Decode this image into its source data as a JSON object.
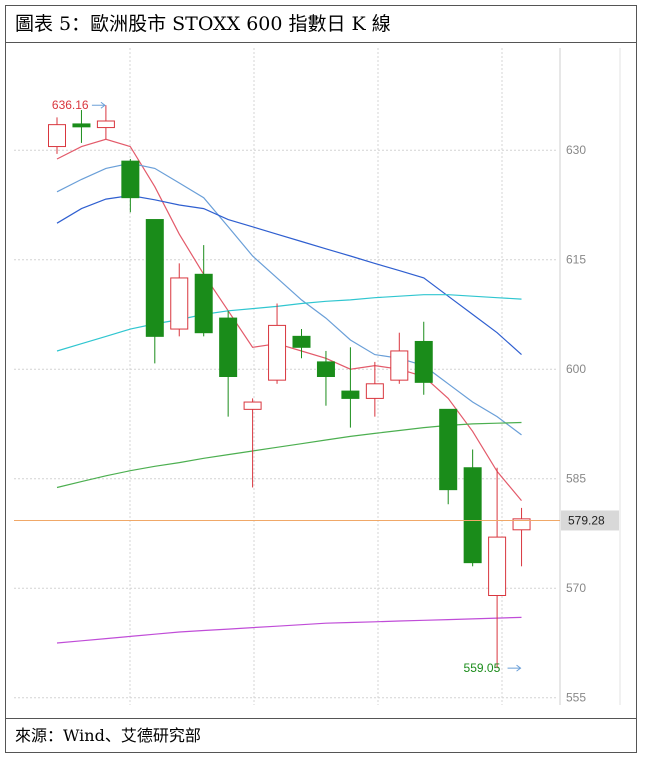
{
  "title": "圖表 5：歐洲股市 STOXX 600 指數日 K 線",
  "source": "來源：Wind、艾德研究部",
  "chart_data": {
    "type": "candlestick",
    "title": "圖表 5：歐洲股市 STOXX 600 指數日 K 線",
    "ylim": [
      554,
      644
    ],
    "yticks": [
      555,
      570,
      585,
      600,
      615,
      630
    ],
    "grid": true,
    "colors": {
      "up": "#d9363e",
      "down": "#1a8c1a",
      "price_line": "#f0a868",
      "price_label_bg": "#d8d8d8"
    },
    "current_price": {
      "value": 579.28,
      "label": "579.28"
    },
    "annotations": [
      {
        "label": "636.16",
        "value": 636.16,
        "candle_index": 2,
        "color": "#d9363e"
      },
      {
        "label": "559.05",
        "value": 559.05,
        "candle_index": 19,
        "color": "#1a8c1a"
      }
    ],
    "candles": [
      {
        "open": 630.5,
        "close": 633.5,
        "high": 634.5,
        "low": 629.5
      },
      {
        "open": 633.6,
        "close": 633.2,
        "high": 635.5,
        "low": 631.0
      },
      {
        "open": 633.1,
        "close": 634.0,
        "high": 636.16,
        "low": 631.5
      },
      {
        "open": 628.5,
        "close": 623.5,
        "high": 628.8,
        "low": 621.5
      },
      {
        "open": 620.5,
        "close": 604.5,
        "high": 620.5,
        "low": 600.8
      },
      {
        "open": 605.5,
        "close": 612.5,
        "high": 614.5,
        "low": 604.5
      },
      {
        "open": 613.0,
        "close": 605.0,
        "high": 617.0,
        "low": 604.5
      },
      {
        "open": 607.0,
        "close": 599.0,
        "high": 608.0,
        "low": 593.5
      },
      {
        "open": 594.5,
        "close": 595.5,
        "high": 596.0,
        "low": 583.8
      },
      {
        "open": 598.5,
        "close": 606.0,
        "high": 609.0,
        "low": 598.0
      },
      {
        "open": 604.5,
        "close": 603.0,
        "high": 605.5,
        "low": 601.5
      },
      {
        "open": 601.0,
        "close": 599.0,
        "high": 602.5,
        "low": 595.0
      },
      {
        "open": 597.0,
        "close": 596.0,
        "high": 603.0,
        "low": 592.0
      },
      {
        "open": 596.0,
        "close": 598.0,
        "high": 601.0,
        "low": 593.5
      },
      {
        "open": 598.5,
        "close": 602.5,
        "high": 605.0,
        "low": 598.0
      },
      {
        "open": 603.8,
        "close": 598.2,
        "high": 606.5,
        "low": 596.5
      },
      {
        "open": 594.5,
        "close": 583.5,
        "high": 594.5,
        "low": 581.5
      },
      {
        "open": 586.5,
        "close": 573.5,
        "high": 589.0,
        "low": 573.0
      },
      {
        "open": 569.0,
        "close": 577.0,
        "high": 586.5,
        "low": 559.05
      },
      {
        "open": 578.0,
        "close": 579.5,
        "high": 581.0,
        "low": 573.0
      }
    ],
    "series": [
      {
        "color": "#e35a6a",
        "values": [
          628.8,
          630.5,
          631.5,
          630.5,
          625.0,
          618.5,
          613.0,
          608.0,
          603.0,
          603.5,
          602.5,
          601.5,
          600.0,
          600.5,
          600.0,
          599.0,
          596.0,
          591.5,
          586.0,
          582.0
        ]
      },
      {
        "color": "#6a9fd8",
        "values": [
          624.3,
          626.0,
          627.5,
          628.2,
          627.5,
          625.5,
          623.5,
          619.5,
          615.5,
          612.5,
          609.5,
          607.0,
          604.0,
          602.0,
          601.5,
          600.5,
          598.0,
          595.5,
          593.5,
          591.0
        ]
      },
      {
        "color": "#2f5fd0",
        "values": [
          620.0,
          622.0,
          623.3,
          623.8,
          623.2,
          622.5,
          622.0,
          620.5,
          619.5,
          618.5,
          617.5,
          616.5,
          615.5,
          614.5,
          613.5,
          612.5,
          610.0,
          607.5,
          605.0,
          602.0
        ]
      },
      {
        "color": "#30c6d0",
        "values": [
          602.5,
          603.5,
          604.5,
          605.5,
          606.2,
          606.8,
          607.5,
          608.0,
          608.3,
          608.6,
          609.0,
          609.3,
          609.5,
          609.8,
          610.0,
          610.2,
          610.2,
          610.0,
          609.8,
          609.6
        ]
      },
      {
        "color": "#4caf50",
        "values": [
          583.8,
          584.6,
          585.4,
          586.1,
          586.7,
          587.2,
          587.8,
          588.3,
          588.8,
          589.3,
          589.8,
          590.3,
          590.8,
          591.2,
          591.6,
          592.0,
          592.3,
          592.5,
          592.6,
          592.7
        ]
      },
      {
        "color": "#c04dd8",
        "values": [
          562.5,
          562.8,
          563.1,
          563.4,
          563.7,
          564.0,
          564.2,
          564.4,
          564.6,
          564.8,
          565.0,
          565.2,
          565.3,
          565.4,
          565.5,
          565.6,
          565.7,
          565.8,
          565.9,
          566.0
        ]
      }
    ]
  }
}
